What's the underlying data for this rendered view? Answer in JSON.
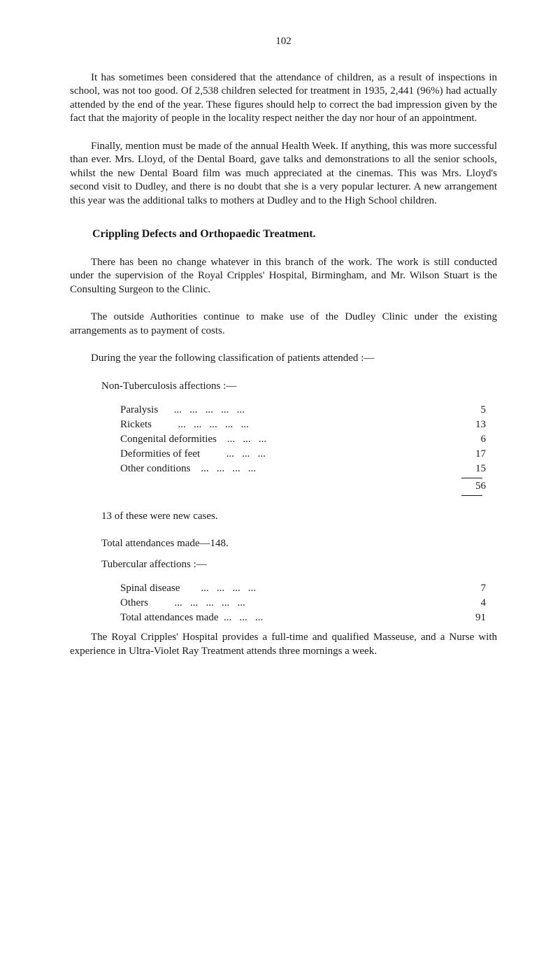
{
  "page_number": "102",
  "paragraphs": {
    "p1": "It has sometimes been considered that the attendance of children, as a result of inspections in school, was not too good. Of 2,538 children selected for treatment in 1935, 2,441 (96%) had actually attended by the end of the year. These figures should help to correct the bad impression given by the fact that the majority of people in the locality respect neither the day nor hour of an appointment.",
    "p2": "Finally, mention must be made of the annual Health Week. If anything, this was more successful than ever. Mrs. Lloyd, of the Dental Board, gave talks and demonstrations to all the senior schools, whilst the new Dental Board film was much appreciated at the cinemas. This was Mrs. Lloyd's second visit to Dudley, and there is no doubt that she is a very popular lecturer. A new arrangement this year was the additional talks to mothers at Dudley and to the High School children.",
    "p3": "There has been no change whatever in this branch of the work. The work is still conducted under the supervision of the Royal Cripples' Hospital, Birmingham, and Mr. Wilson Stuart is the Consulting Surgeon to the Clinic.",
    "p4": "The outside Authorities continue to make use of the Dudley Clinic under the existing arrangements as to payment of costs.",
    "p5": "During the year the following classification of patients attended :—",
    "p6": "The Royal Cripples' Hospital provides a full-time and qualified Masseuse, and a Nurse with experience in Ultra-Violet Ray Treatment attends three mornings a week."
  },
  "section_heading": "Crippling Defects and Orthopaedic Treatment.",
  "non_tuberculosis": {
    "heading": "Non-Tuberculosis affections :—",
    "items": [
      {
        "label": "Paralysis      ...   ...   ...   ...   ...",
        "value": "5"
      },
      {
        "label": "Rickets          ...   ...   ...   ...   ...",
        "value": "13"
      },
      {
        "label": "Congenital deformities    ...   ...   ...",
        "value": "6"
      },
      {
        "label": "Deformities of feet          ...   ...   ...",
        "value": "17"
      },
      {
        "label": "Other conditions    ...   ...   ...   ...",
        "value": "15"
      }
    ],
    "total": "56"
  },
  "case_notes": {
    "note1": "13 of these were new cases.",
    "note2": "Total attendances made—148."
  },
  "tubercular": {
    "heading": "Tubercular affections :—",
    "items": [
      {
        "label": "Spinal disease        ...   ...   ...   ...",
        "value": "7"
      },
      {
        "label": "Others          ...   ...   ...   ...   ...",
        "value": "4"
      },
      {
        "label": "Total attendances made  ...   ...   ...",
        "value": "91"
      }
    ]
  },
  "colors": {
    "text": "#1a1a1a",
    "background": "#ffffff"
  },
  "typography": {
    "body_fontsize": 15,
    "heading_fontsize": 16,
    "font_family": "serif"
  }
}
